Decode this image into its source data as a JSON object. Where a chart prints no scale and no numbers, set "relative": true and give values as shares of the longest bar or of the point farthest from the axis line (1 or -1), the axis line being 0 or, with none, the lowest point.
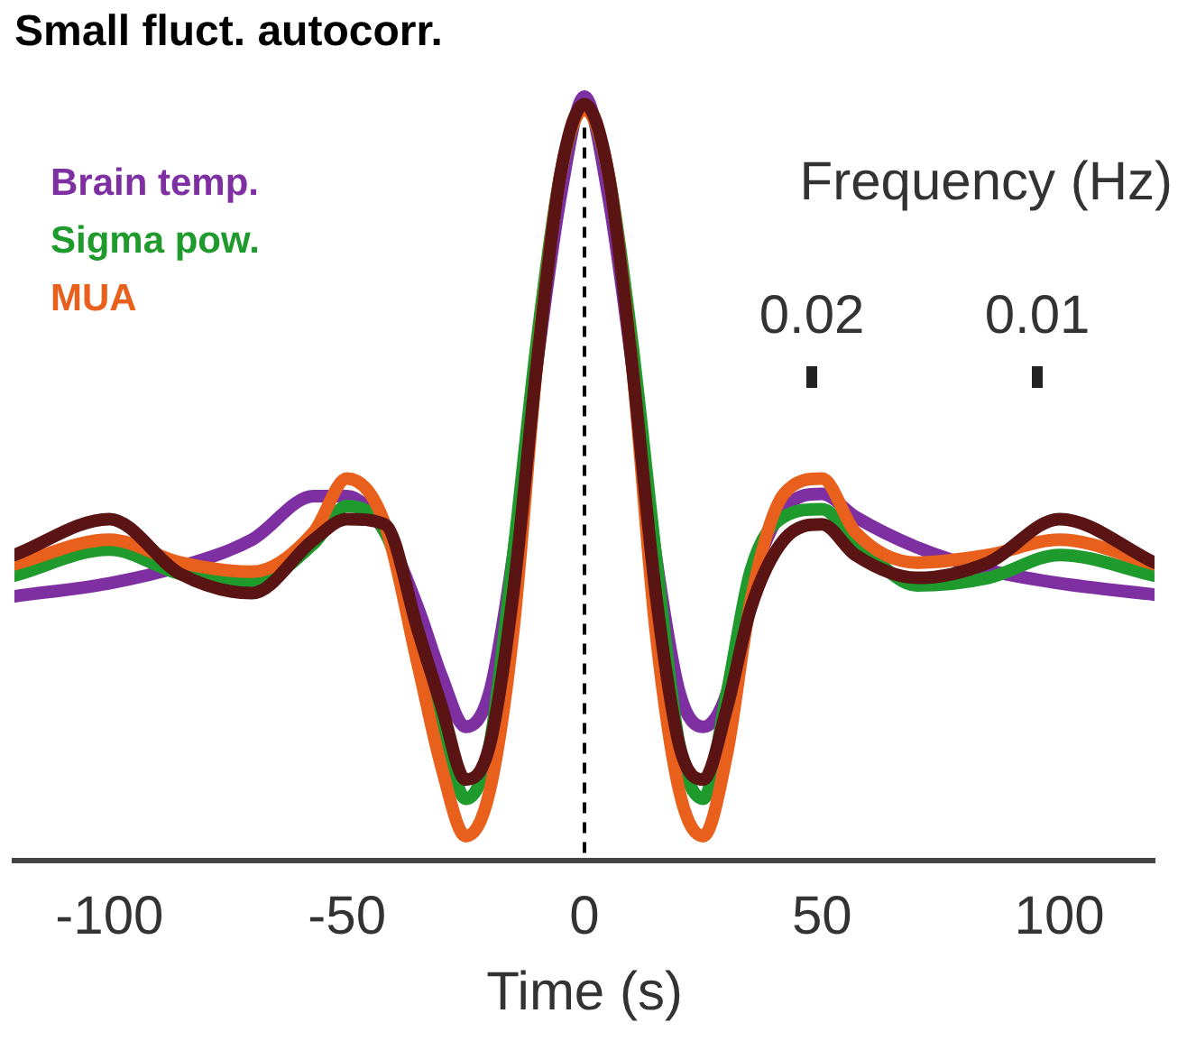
{
  "chart_data": {
    "type": "line",
    "title": "Small fluct. autocorr.",
    "xlabel": "Time (s)",
    "relative": true,
    "xlim": [
      -120,
      120
    ],
    "xticks": [
      -100,
      -50,
      0,
      50,
      100
    ],
    "legend": "top left",
    "line_style": "solid",
    "marker": "none",
    "grid": false,
    "ref_lines": [
      {
        "axis": "x",
        "value": 0,
        "line_style": "dashed",
        "color": "#000000"
      }
    ],
    "annotations": [
      "Frequency (Hz)",
      "0.02",
      "0.01"
    ],
    "x": [
      -120,
      -100,
      -85,
      -70,
      -57,
      -50,
      -42,
      -35,
      -30,
      -25,
      -20,
      -15,
      -10,
      -5,
      0,
      5,
      10,
      15,
      20,
      25,
      30,
      35,
      42,
      50,
      57,
      70,
      85,
      100,
      120
    ],
    "series": [
      {
        "values": [
          0.4,
          0.447,
          0.375,
          0.35,
          0.42,
          0.447,
          0.44,
          0.3,
          0.2,
          0.106,
          0.15,
          0.35,
          0.65,
          0.9,
          0.99,
          0.9,
          0.65,
          0.35,
          0.15,
          0.106,
          0.2,
          0.33,
          0.42,
          0.44,
          0.4,
          0.37,
          0.39,
          0.447,
          0.39
        ],
        "color": "#5a1414"
      },
      {
        "name": "MUA",
        "values": [
          0.388,
          0.42,
          0.39,
          0.378,
          0.43,
          0.5,
          0.44,
          0.254,
          0.12,
          0.032,
          0.09,
          0.3,
          0.65,
          0.9,
          0.983,
          0.9,
          0.65,
          0.3,
          0.09,
          0.032,
          0.14,
          0.34,
          0.48,
          0.5,
          0.43,
          0.39,
          0.4,
          0.42,
          0.388
        ],
        "color": "#e8601c"
      },
      {
        "name": "Sigma pow.",
        "values": [
          0.373,
          0.407,
          0.375,
          0.363,
          0.415,
          0.464,
          0.43,
          0.3,
          0.18,
          0.081,
          0.15,
          0.4,
          0.68,
          0.9,
          0.985,
          0.9,
          0.68,
          0.4,
          0.15,
          0.081,
          0.22,
          0.38,
          0.45,
          0.46,
          0.42,
          0.36,
          0.37,
          0.4,
          0.373
        ],
        "color": "#1f9a2d"
      },
      {
        "name": "Brain temp.",
        "values": [
          0.346,
          0.363,
          0.385,
          0.42,
          0.477,
          0.477,
          0.43,
          0.33,
          0.24,
          0.175,
          0.22,
          0.4,
          0.65,
          0.87,
          1.0,
          0.87,
          0.65,
          0.4,
          0.22,
          0.175,
          0.22,
          0.36,
          0.46,
          0.48,
          0.45,
          0.41,
          0.38,
          0.363,
          0.348
        ],
        "color": "#7e2fa2"
      }
    ]
  }
}
